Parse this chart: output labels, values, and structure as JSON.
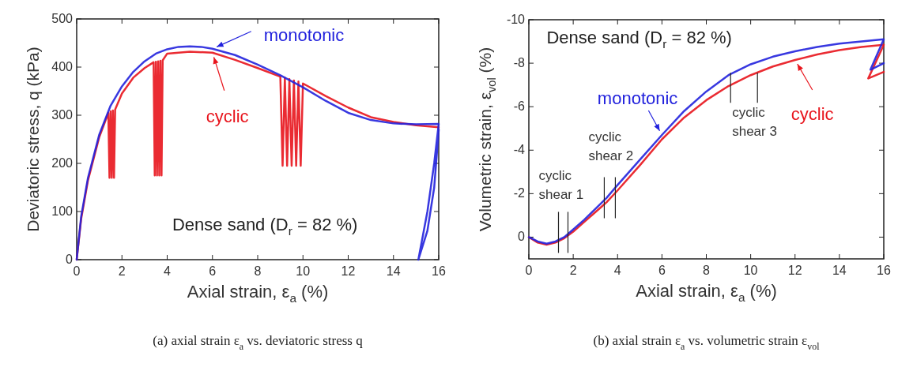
{
  "chart_data": [
    {
      "type": "line",
      "xlabel": "Axial strain, ε$_{a}$ (%)",
      "ylabel": "Deviatoric stress, q (kPa)",
      "xlim": [
        0,
        16
      ],
      "ylim": [
        0,
        500
      ],
      "xticks": [
        0,
        2,
        4,
        6,
        8,
        10,
        12,
        14,
        16
      ],
      "yticks": [
        0,
        100,
        200,
        300,
        400,
        500
      ],
      "series": [
        {
          "name": "cyclic",
          "color": "#e8141c",
          "x": [
            0,
            0.2,
            0.5,
            1,
            1.4,
            1.45,
            1.5,
            1.55,
            1.6,
            1.65,
            1.7,
            2,
            2.5,
            3,
            3.4,
            3.45,
            3.5,
            3.55,
            3.6,
            3.65,
            3.7,
            3.75,
            3.8,
            4,
            5,
            6,
            7,
            8,
            9,
            9.1,
            9.2,
            9.3,
            9.4,
            9.5,
            9.6,
            9.7,
            9.8,
            9.9,
            10,
            11,
            12,
            13,
            14,
            15,
            16
          ],
          "values": [
            0,
            85,
            165,
            255,
            305,
            170,
            308,
            170,
            310,
            170,
            312,
            345,
            378,
            398,
            410,
            175,
            411,
            175,
            412,
            175,
            413,
            175,
            414,
            428,
            432,
            430,
            415,
            398,
            380,
            195,
            378,
            195,
            375,
            195,
            372,
            195,
            370,
            195,
            366,
            340,
            316,
            296,
            286,
            279,
            275
          ]
        },
        {
          "name": "monotonic",
          "color": "#2222dd",
          "x": [
            0,
            0.2,
            0.5,
            1,
            1.5,
            2,
            2.5,
            3,
            3.5,
            4,
            4.5,
            5,
            5.5,
            6,
            7,
            8,
            9,
            10,
            11,
            12,
            13,
            14,
            15,
            16,
            15.8,
            15.5,
            15.1,
            15.5,
            15.8,
            16
          ],
          "values": [
            0,
            90,
            170,
            260,
            320,
            360,
            390,
            412,
            428,
            437,
            442,
            443,
            442,
            438,
            425,
            405,
            383,
            358,
            330,
            305,
            290,
            283,
            281,
            282,
            200,
            100,
            0,
            60,
            150,
            270
          ]
        }
      ],
      "annotations": [
        "Dense sand (D$_{r}$ = 82 %)",
        "(a) axial strain ε$_{a}$ vs. deviatoric stress q"
      ]
    },
    {
      "type": "line",
      "xlabel": "Axial strain, ε$_{a}$ (%)",
      "ylabel": "Volumetric strain, ε$_{vol}$ (%)",
      "xlim": [
        0,
        16
      ],
      "ylim": [
        1,
        -10
      ],
      "xticks": [
        0,
        2,
        4,
        6,
        8,
        10,
        12,
        14,
        16
      ],
      "yticks": [
        0,
        -2,
        -4,
        -6,
        -8,
        -10
      ],
      "series": [
        {
          "name": "cyclic",
          "color": "#e8141c",
          "x": [
            0,
            0.4,
            0.8,
            1.2,
            1.6,
            2,
            2.5,
            3,
            3.5,
            4,
            5,
            6,
            7,
            8,
            9,
            10,
            11,
            12,
            13,
            14,
            15,
            16,
            15.3,
            16
          ],
          "values": [
            0,
            0.25,
            0.35,
            0.25,
            0.05,
            -0.25,
            -0.7,
            -1.15,
            -1.6,
            -2.15,
            -3.3,
            -4.5,
            -5.5,
            -6.3,
            -6.95,
            -7.45,
            -7.85,
            -8.15,
            -8.4,
            -8.6,
            -8.75,
            -8.85,
            -7.3,
            -7.6
          ]
        },
        {
          "name": "monotonic",
          "color": "#2222dd",
          "x": [
            0,
            0.4,
            0.8,
            1.2,
            1.6,
            2,
            2.5,
            3,
            3.5,
            4,
            5,
            6,
            7,
            8,
            9,
            10,
            11,
            12,
            13,
            14,
            15,
            16,
            15.4,
            16
          ],
          "values": [
            0,
            0.2,
            0.3,
            0.2,
            0,
            -0.35,
            -0.8,
            -1.3,
            -1.8,
            -2.4,
            -3.55,
            -4.7,
            -5.8,
            -6.7,
            -7.45,
            -7.95,
            -8.3,
            -8.55,
            -8.75,
            -8.9,
            -9.0,
            -9.1,
            -7.7,
            -8.0
          ]
        }
      ],
      "annotations": [
        {
          "text": "cyclic shear 1",
          "x": 1.55,
          "y": 0
        },
        {
          "text": "cyclic shear 2",
          "x": 3.65,
          "y": -1.85
        },
        {
          "text": "cyclic shear 3",
          "x": 9.7,
          "y": -7.2
        },
        "Dense sand (D$_{r}$ = 82 %)",
        "(b) axial strain ε$_{a}$ vs. volumetric strain ε$_{vol}$"
      ]
    }
  ]
}
